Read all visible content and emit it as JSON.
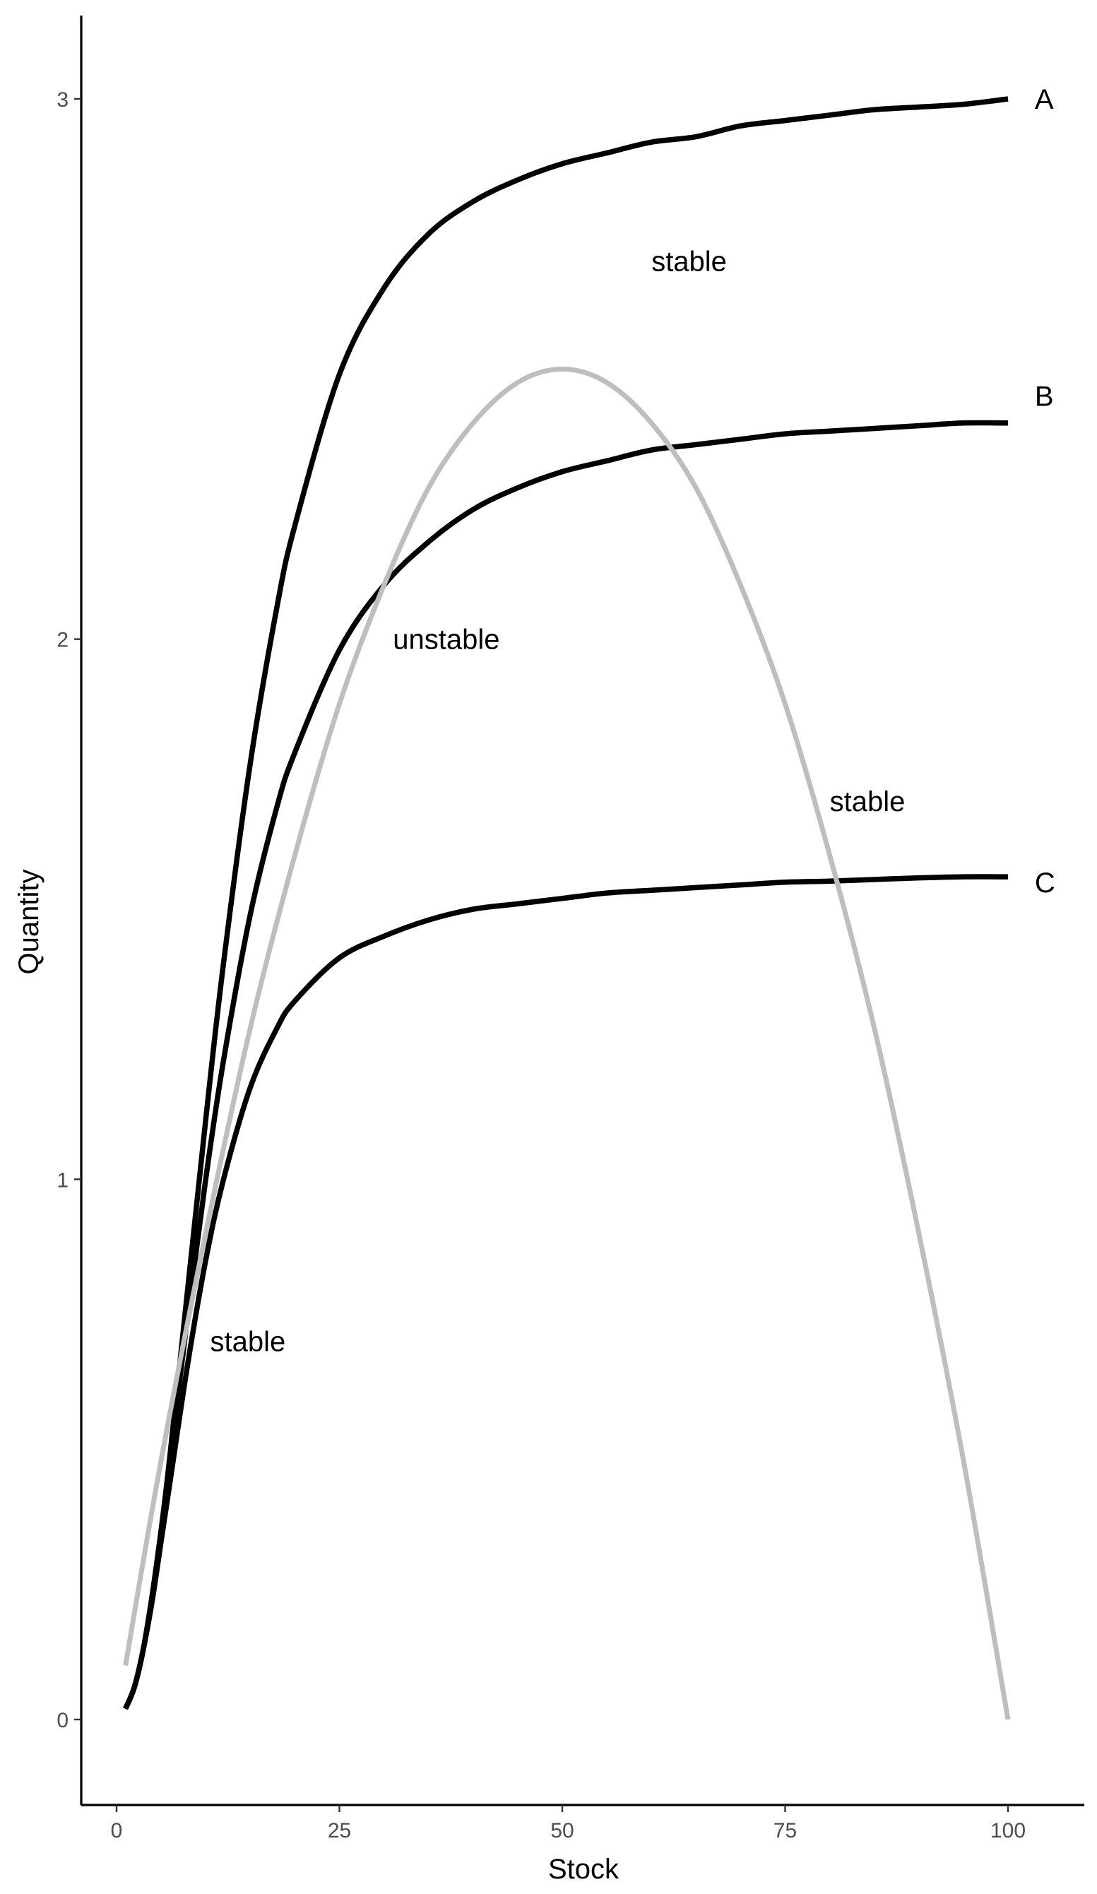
{
  "chart_data": {
    "type": "line",
    "title": "",
    "xlabel": "Stock",
    "ylabel": "Quantity",
    "xlim": [
      -6,
      130
    ],
    "ylim": [
      -0.15,
      3.15
    ],
    "x_ticks": [
      0,
      25,
      50,
      75,
      100
    ],
    "y_ticks": [
      0,
      1,
      2,
      3
    ],
    "grid": false,
    "legend": "none",
    "colors": {
      "supply_curves": "#000000",
      "growth_curve": "#bebebe",
      "axis": "#000000",
      "tick_text": "#4d4d4d"
    },
    "series": [
      {
        "name": "A",
        "color": "#000000",
        "x": [
          1,
          2,
          3,
          4,
          5,
          6,
          8,
          10,
          12,
          15,
          18,
          20,
          25,
          30,
          35,
          40,
          45,
          50,
          55,
          60,
          65,
          70,
          75,
          80,
          85,
          90,
          95,
          100
        ],
        "y": [
          0.02,
          0.06,
          0.13,
          0.23,
          0.35,
          0.49,
          0.8,
          1.11,
          1.4,
          1.77,
          2.06,
          2.21,
          2.49,
          2.65,
          2.75,
          2.81,
          2.85,
          2.88,
          2.9,
          2.92,
          2.93,
          2.95,
          2.96,
          2.97,
          2.98,
          2.985,
          2.99,
          3.0
        ]
      },
      {
        "name": "B",
        "color": "#000000",
        "x": [
          1,
          2,
          3,
          4,
          5,
          6,
          8,
          10,
          12,
          15,
          18,
          20,
          25,
          30,
          35,
          40,
          45,
          50,
          55,
          60,
          65,
          70,
          75,
          80,
          85,
          90,
          95,
          100
        ],
        "y": [
          0.02,
          0.06,
          0.13,
          0.23,
          0.35,
          0.48,
          0.75,
          1.0,
          1.22,
          1.49,
          1.69,
          1.79,
          1.98,
          2.1,
          2.18,
          2.24,
          2.28,
          2.31,
          2.33,
          2.35,
          2.36,
          2.37,
          2.38,
          2.385,
          2.39,
          2.395,
          2.4,
          2.4
        ]
      },
      {
        "name": "C",
        "color": "#000000",
        "x": [
          1,
          2,
          3,
          4,
          5,
          6,
          8,
          10,
          12,
          15,
          18,
          20,
          25,
          30,
          35,
          40,
          45,
          50,
          55,
          60,
          65,
          70,
          75,
          80,
          85,
          90,
          95,
          100
        ],
        "y": [
          0.02,
          0.06,
          0.13,
          0.22,
          0.33,
          0.44,
          0.66,
          0.85,
          1.0,
          1.17,
          1.28,
          1.33,
          1.41,
          1.45,
          1.48,
          1.5,
          1.51,
          1.52,
          1.53,
          1.535,
          1.54,
          1.545,
          1.55,
          1.552,
          1.555,
          1.558,
          1.56,
          1.56
        ]
      },
      {
        "color": "#bebebe",
        "x": [
          1,
          5,
          10,
          15,
          20,
          25,
          30,
          35,
          40,
          45,
          50,
          55,
          60,
          65,
          70,
          75,
          80,
          85,
          90,
          95,
          100
        ],
        "y": [
          0.1,
          0.48,
          0.9,
          1.28,
          1.6,
          1.88,
          2.1,
          2.28,
          2.4,
          2.475,
          2.5,
          2.475,
          2.4,
          2.28,
          2.1,
          1.88,
          1.6,
          1.28,
          0.9,
          0.48,
          0.0
        ]
      }
    ],
    "curve_labels": [
      {
        "text": "A",
        "x": 103,
        "y": 3.0
      },
      {
        "text": "B",
        "x": 103,
        "y": 2.45
      },
      {
        "text": "C",
        "x": 103,
        "y": 1.55
      }
    ],
    "annotations": [
      {
        "text": "stable",
        "x": 10.5,
        "y": 0.7
      },
      {
        "text": "unstable",
        "x": 31,
        "y": 2.0
      },
      {
        "text": "stable",
        "x": 60,
        "y": 2.7
      },
      {
        "text": "stable",
        "x": 80,
        "y": 1.7
      }
    ]
  }
}
